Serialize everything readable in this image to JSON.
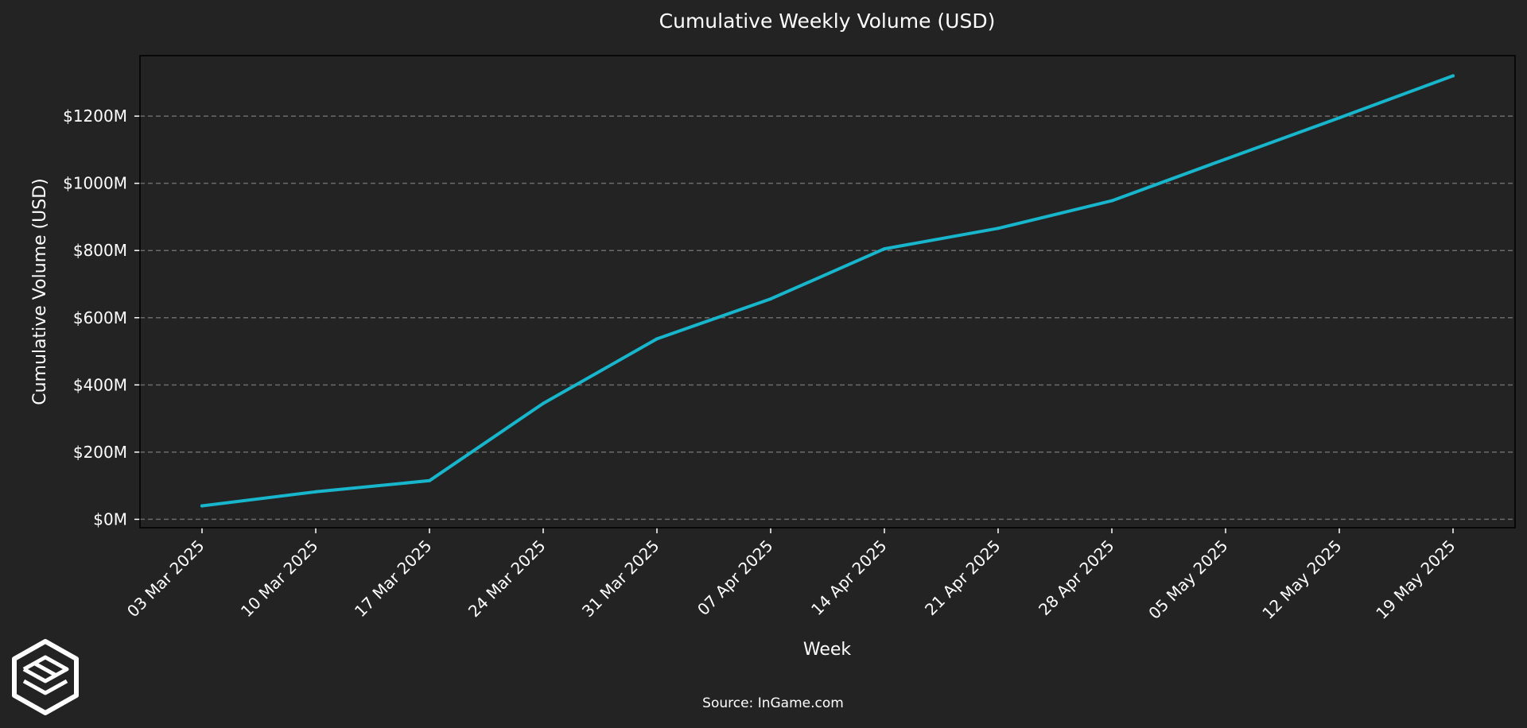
{
  "source_text": "Source: InGame.com",
  "logo": {
    "icon": "ingame-cube-logo-icon"
  },
  "colors": {
    "background": "#232323",
    "plot_background": "#232323",
    "line": "#17b6cc",
    "grid": "#6b6b6b",
    "text": "#ffffff",
    "frame": "#000000"
  },
  "chart_data": {
    "type": "line",
    "title": "Cumulative Weekly Volume (USD)",
    "xlabel": "Week",
    "ylabel": "Cumulative Volume (USD)",
    "x": [
      "03 Mar 2025",
      "10 Mar 2025",
      "17 Mar 2025",
      "24 Mar 2025",
      "31 Mar 2025",
      "07 Apr 2025",
      "14 Apr 2025",
      "21 Apr 2025",
      "28 Apr 2025",
      "05 May 2025",
      "12 May 2025",
      "19 May 2025"
    ],
    "series": [
      {
        "values": [
          40,
          82,
          115,
          345,
          537,
          656,
          805,
          866,
          948,
          1072,
          1195,
          1320
        ]
      }
    ],
    "y_unit": "USD millions",
    "ylim": [
      -25,
      1380
    ],
    "yticks": [
      0,
      200,
      400,
      600,
      800,
      1000,
      1200
    ],
    "ytick_labels": [
      "$0M",
      "$200M",
      "$400M",
      "$600M",
      "$800M",
      "$1000M",
      "$1200M"
    ],
    "grid": "horizontal dashed",
    "legend": "none"
  }
}
